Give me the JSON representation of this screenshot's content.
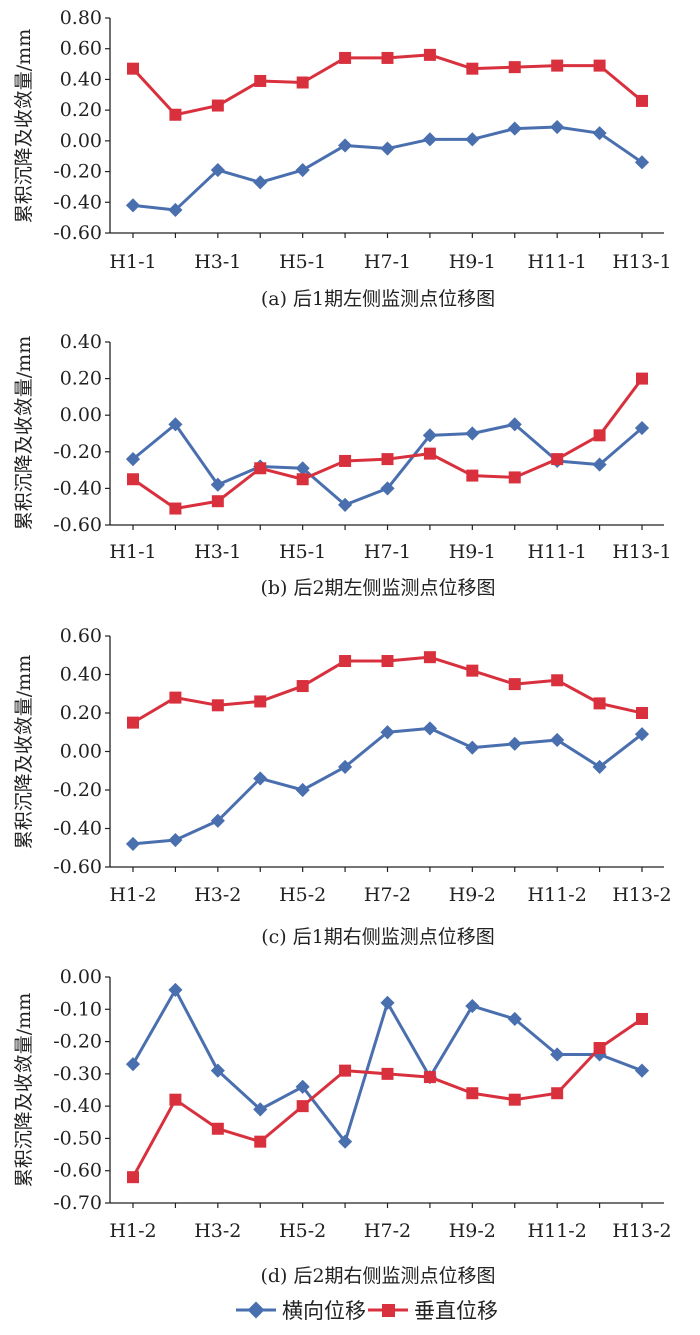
{
  "legend": {
    "series1": "横向位移",
    "series2": "垂直位移"
  },
  "colors": {
    "series1": "#4a6faf",
    "series2": "#d9303e",
    "axis": "#222222"
  },
  "chart_data": [
    {
      "type": "line",
      "title": "(a) 后1期左侧监测点位移图",
      "ylabel": "累积沉降及收敛量/mm",
      "xlabel": "",
      "ylim": [
        -0.6,
        0.8
      ],
      "yticks": [
        "0.80",
        "0.60",
        "0.40",
        "0.20",
        "0.00",
        "-0.20",
        "-0.40",
        "-0.60"
      ],
      "categories": [
        "H1-1",
        "H2-1",
        "H3-1",
        "H4-1",
        "H5-1",
        "H6-1",
        "H7-1",
        "H8-1",
        "H9-1",
        "H10-1",
        "H11-1",
        "H12-1",
        "H13-1"
      ],
      "tick_labels": [
        "H1-1",
        "H3-1",
        "H5-1",
        "H7-1",
        "H9-1",
        "H11-1",
        "H13-1"
      ],
      "series": [
        {
          "name": "横向位移",
          "values": [
            -0.42,
            -0.45,
            -0.19,
            -0.27,
            -0.19,
            -0.03,
            -0.05,
            0.01,
            0.01,
            0.08,
            0.09,
            0.05,
            -0.14
          ]
        },
        {
          "name": "垂直位移",
          "values": [
            0.47,
            0.17,
            0.23,
            0.39,
            0.38,
            0.54,
            0.54,
            0.56,
            0.47,
            0.48,
            0.49,
            0.49,
            0.26
          ]
        }
      ]
    },
    {
      "type": "line",
      "title": "(b) 后2期左侧监测点位移图",
      "ylabel": "累积沉降及收敛量/mm",
      "xlabel": "",
      "ylim": [
        -0.6,
        0.4
      ],
      "yticks": [
        "0.40",
        "0.20",
        "0.00",
        "-0.20",
        "-0.40",
        "-0.60"
      ],
      "categories": [
        "H1-1",
        "H2-1",
        "H3-1",
        "H4-1",
        "H5-1",
        "H6-1",
        "H7-1",
        "H8-1",
        "H9-1",
        "H10-1",
        "H11-1",
        "H12-1",
        "H13-1"
      ],
      "tick_labels": [
        "H1-1",
        "H3-1",
        "H5-1",
        "H7-1",
        "H9-1",
        "H11-1",
        "H13-1"
      ],
      "series": [
        {
          "name": "横向位移",
          "values": [
            -0.24,
            -0.05,
            -0.38,
            -0.28,
            -0.29,
            -0.49,
            -0.4,
            -0.11,
            -0.1,
            -0.05,
            -0.25,
            -0.27,
            -0.07
          ]
        },
        {
          "name": "垂直位移",
          "values": [
            -0.35,
            -0.51,
            -0.47,
            -0.29,
            -0.35,
            -0.25,
            -0.24,
            -0.21,
            -0.33,
            -0.34,
            -0.24,
            -0.11,
            0.2
          ]
        }
      ]
    },
    {
      "type": "line",
      "title": "(c) 后1期右侧监测点位移图",
      "ylabel": "累积沉降及收敛量/mm",
      "xlabel": "",
      "ylim": [
        -0.6,
        0.6
      ],
      "yticks": [
        "0.60",
        "0.40",
        "0.20",
        "0.00",
        "-0.20",
        "-0.40",
        "-0.60"
      ],
      "categories": [
        "H1-2",
        "H2-2",
        "H3-2",
        "H4-2",
        "H5-2",
        "H6-2",
        "H7-2",
        "H8-2",
        "H9-2",
        "H10-2",
        "H11-2",
        "H12-2",
        "H13-2"
      ],
      "tick_labels": [
        "H1-2",
        "H3-2",
        "H5-2",
        "H7-2",
        "H9-2",
        "H11-2",
        "H13-2"
      ],
      "series": [
        {
          "name": "横向位移",
          "values": [
            -0.48,
            -0.46,
            -0.36,
            -0.14,
            -0.2,
            -0.08,
            0.1,
            0.12,
            0.02,
            0.04,
            0.06,
            -0.08,
            0.09
          ]
        },
        {
          "name": "垂直位移",
          "values": [
            0.15,
            0.28,
            0.24,
            0.26,
            0.34,
            0.47,
            0.47,
            0.49,
            0.42,
            0.35,
            0.37,
            0.25,
            0.2
          ]
        }
      ]
    },
    {
      "type": "line",
      "title": "(d) 后2期右侧监测点位移图",
      "ylabel": "累积沉降及收敛量/mm",
      "xlabel": "",
      "ylim": [
        -0.7,
        0.0
      ],
      "yticks": [
        "0.00",
        "-0.10",
        "-0.20",
        "-0.30",
        "-0.40",
        "-0.50",
        "-0.60",
        "-0.70"
      ],
      "categories": [
        "H1-2",
        "H2-2",
        "H3-2",
        "H4-2",
        "H5-2",
        "H6-2",
        "H7-2",
        "H8-2",
        "H9-2",
        "H10-2",
        "H11-2",
        "H12-2",
        "H13-2"
      ],
      "tick_labels": [
        "H1-2",
        "H3-2",
        "H5-2",
        "H7-2",
        "H9-2",
        "H11-2",
        "H13-2"
      ],
      "series": [
        {
          "name": "横向位移",
          "values": [
            -0.27,
            -0.04,
            -0.29,
            -0.41,
            -0.34,
            -0.51,
            -0.08,
            -0.31,
            -0.09,
            -0.13,
            -0.24,
            -0.24,
            -0.29
          ]
        },
        {
          "name": "垂直位移",
          "values": [
            -0.62,
            -0.38,
            -0.47,
            -0.51,
            -0.4,
            -0.29,
            -0.3,
            -0.31,
            -0.36,
            -0.38,
            -0.36,
            -0.22,
            -0.13
          ]
        }
      ]
    }
  ]
}
